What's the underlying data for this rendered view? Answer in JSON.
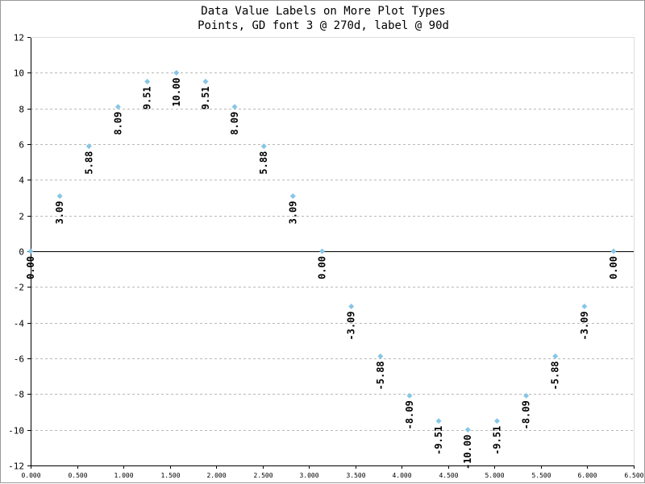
{
  "chart_data": {
    "type": "scatter",
    "title": "Data Value Labels on More Plot Types",
    "subtitle": "Points, GD font 3 @ 270d, label @ 90d",
    "xlim": [
      0,
      6.5
    ],
    "ylim": [
      -12,
      12
    ],
    "x_ticks": [
      0,
      0.5,
      1,
      1.5,
      2,
      2.5,
      3,
      3.5,
      4,
      4.5,
      5,
      5.5,
      6,
      6.5
    ],
    "x_tick_labels": [
      "0.000",
      "0.500",
      "1.000",
      "1.500",
      "2.000",
      "2.500",
      "3.000",
      "3.500",
      "4.000",
      "4.500",
      "5.000",
      "5.500",
      "6.000",
      "6.500"
    ],
    "y_ticks": [
      -12,
      -10,
      -8,
      -6,
      -4,
      -2,
      0,
      2,
      4,
      6,
      8,
      10,
      12
    ],
    "y_tick_labels": [
      "-12",
      "-10",
      "-8",
      "-6",
      "-4",
      "-2",
      "0",
      "2",
      "4",
      "6",
      "8",
      "10",
      "12"
    ],
    "grid": "horizontal-dashed",
    "zero_line": true,
    "marker_color": "#87c6e6",
    "label_color": "#000000",
    "points": [
      {
        "x": 0.0,
        "y": 0.0,
        "label": "0.00"
      },
      {
        "x": 0.314,
        "y": 3.09,
        "label": "3.09"
      },
      {
        "x": 0.628,
        "y": 5.88,
        "label": "5.88"
      },
      {
        "x": 0.942,
        "y": 8.09,
        "label": "8.09"
      },
      {
        "x": 1.257,
        "y": 9.51,
        "label": "9.51"
      },
      {
        "x": 1.571,
        "y": 10.0,
        "label": "10.00"
      },
      {
        "x": 1.885,
        "y": 9.51,
        "label": "9.51"
      },
      {
        "x": 2.199,
        "y": 8.09,
        "label": "8.09"
      },
      {
        "x": 2.513,
        "y": 5.88,
        "label": "5.88"
      },
      {
        "x": 2.827,
        "y": 3.09,
        "label": "3.09"
      },
      {
        "x": 3.142,
        "y": 0.0,
        "label": "0.00"
      },
      {
        "x": 3.456,
        "y": -3.09,
        "label": "-3.09"
      },
      {
        "x": 3.77,
        "y": -5.88,
        "label": "-5.88"
      },
      {
        "x": 4.084,
        "y": -8.09,
        "label": "-8.09"
      },
      {
        "x": 4.398,
        "y": -9.51,
        "label": "-9.51"
      },
      {
        "x": 4.712,
        "y": -10.0,
        "label": "-10.00"
      },
      {
        "x": 5.027,
        "y": -9.51,
        "label": "-9.51"
      },
      {
        "x": 5.341,
        "y": -8.09,
        "label": "-8.09"
      },
      {
        "x": 5.655,
        "y": -5.88,
        "label": "-5.88"
      },
      {
        "x": 5.969,
        "y": -3.09,
        "label": "-3.09"
      },
      {
        "x": 6.283,
        "y": 0.0,
        "label": "0.00"
      }
    ]
  }
}
